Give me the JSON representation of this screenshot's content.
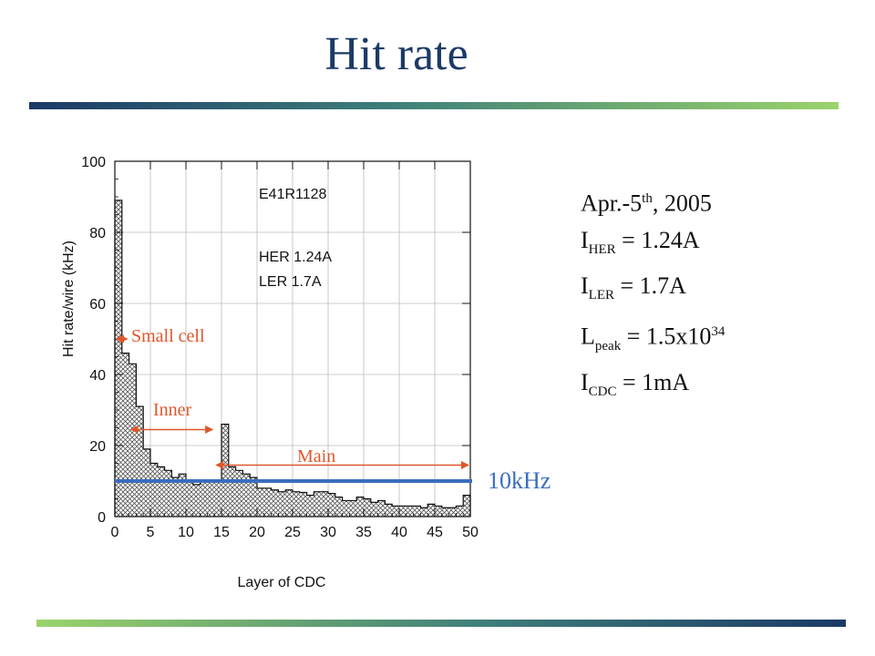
{
  "title": "Hit rate",
  "info": {
    "date_main": "Apr.-5",
    "date_sup": "th",
    "date_rest": ", 2005",
    "lines": [
      {
        "sym": "I",
        "sub": "HER",
        "rest": " = 1.24A",
        "sup": ""
      },
      {
        "sym": "I",
        "sub": "LER",
        "rest": " = 1.7A",
        "sup": ""
      },
      {
        "sym": "L",
        "sub": "peak",
        "rest": " = 1.5x10",
        "sup": "34"
      },
      {
        "sym": "I",
        "sub": "CDC",
        "rest": " = 1mA",
        "sup": ""
      }
    ]
  },
  "chart_data": {
    "type": "bar",
    "xlabel": "Layer of CDC",
    "ylabel": "Hit rate/wire (kHz)",
    "xlim": [
      0,
      50
    ],
    "ylim": [
      0,
      100
    ],
    "xticks": [
      0,
      5,
      10,
      15,
      20,
      25,
      30,
      35,
      40,
      45,
      50
    ],
    "yticks": [
      0,
      20,
      40,
      60,
      80,
      100
    ],
    "x": [
      0,
      1,
      2,
      3,
      4,
      5,
      6,
      7,
      8,
      9,
      10,
      11,
      12,
      13,
      14,
      15,
      16,
      17,
      18,
      19,
      20,
      21,
      22,
      23,
      24,
      25,
      26,
      27,
      28,
      29,
      30,
      31,
      32,
      33,
      34,
      35,
      36,
      37,
      38,
      39,
      40,
      41,
      42,
      43,
      44,
      45,
      46,
      47,
      48,
      49
    ],
    "values": [
      89,
      46,
      43,
      31,
      19,
      15,
      14,
      13,
      11,
      12,
      10,
      9,
      10,
      10,
      10,
      26,
      14,
      13,
      12,
      11,
      8,
      8,
      7.5,
      7,
      7.5,
      7,
      6.8,
      6,
      7,
      7,
      6.5,
      5.5,
      4.5,
      4.5,
      5.5,
      5,
      4,
      4.5,
      3.5,
      3,
      3,
      3,
      3,
      2.5,
      3.5,
      3,
      2.5,
      2.5,
      3,
      6
    ],
    "legend": [
      "E41R1128",
      "HER 1.24A",
      "LER 1.7A"
    ],
    "reference_line": {
      "value": 10,
      "label": "10kHz",
      "color": "#3b6dbf"
    },
    "annotations": [
      {
        "label": "Small cell",
        "range": [
          0,
          2
        ],
        "color": "#e0562b"
      },
      {
        "label": "Inner",
        "range": [
          2,
          14
        ],
        "color": "#e0562b"
      },
      {
        "label": "Main",
        "range": [
          14,
          50
        ],
        "color": "#e0562b"
      }
    ],
    "grid": true
  }
}
